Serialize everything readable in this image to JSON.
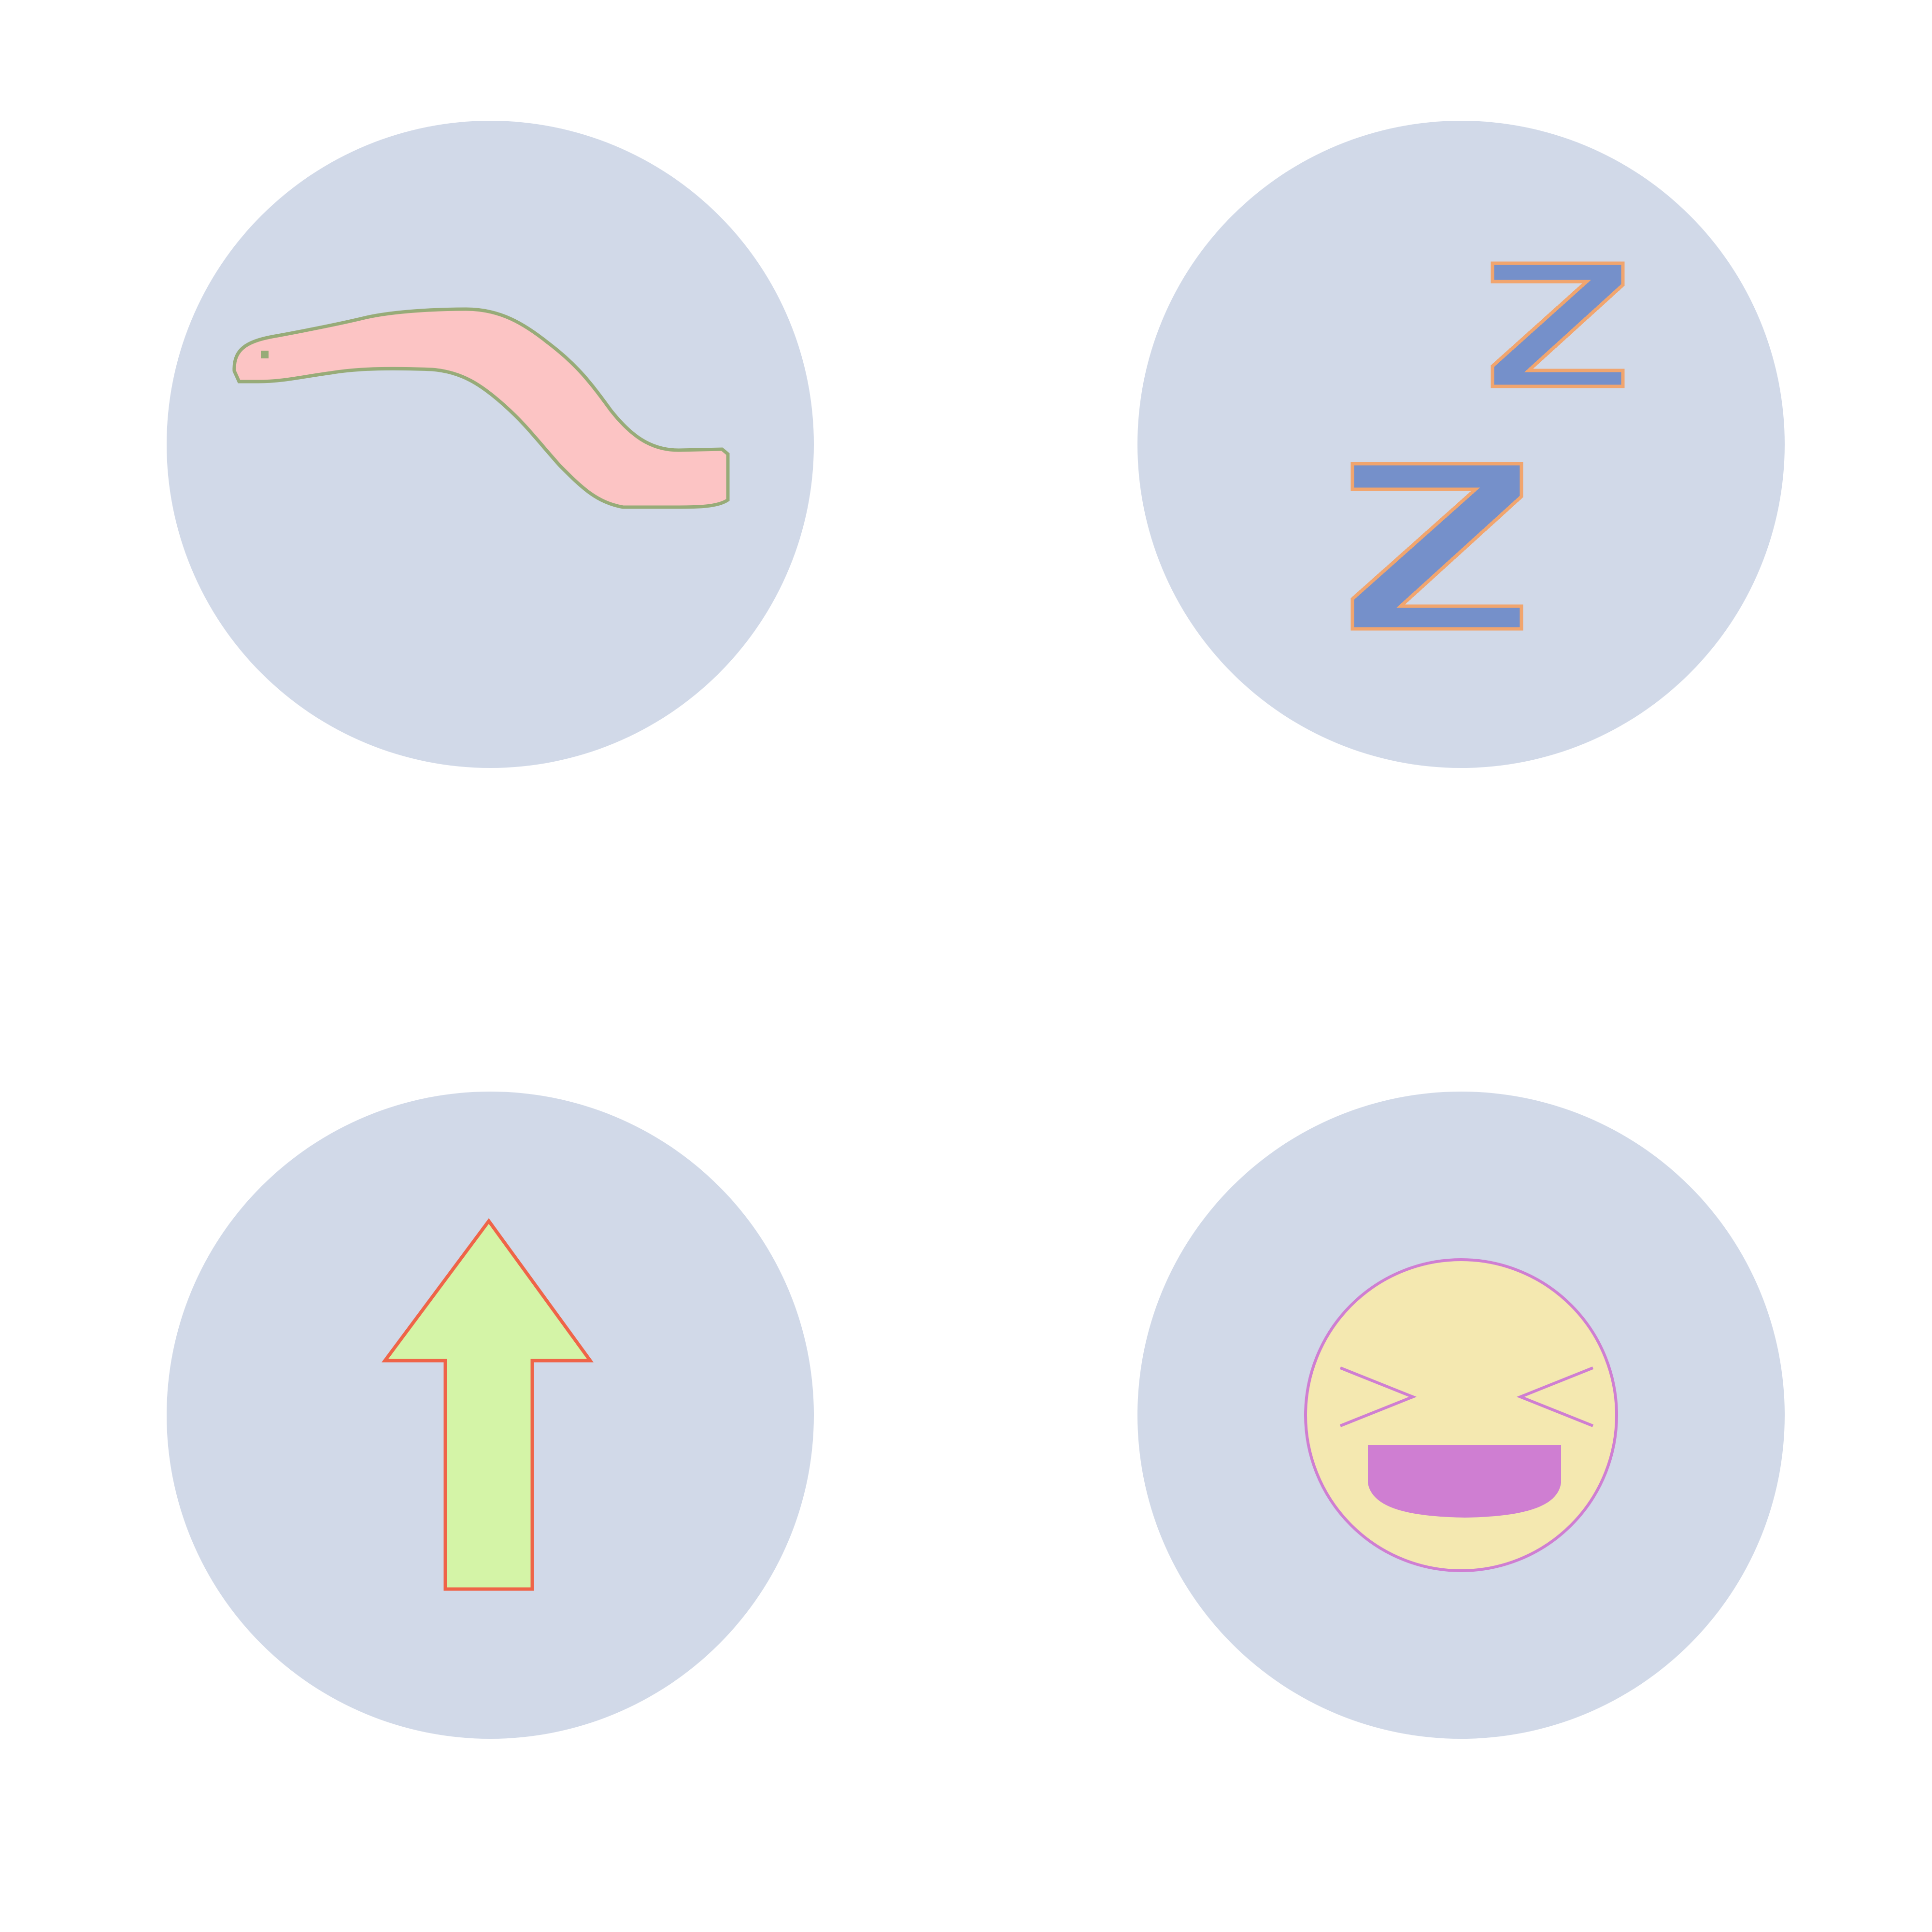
{
  "colors": {
    "page_background": "#ffffff",
    "tile_background": "#d1d9e8"
  },
  "icons": [
    {
      "name": "worm-icon",
      "fill": "#fcc4c4",
      "stroke": "#97ab78"
    },
    {
      "name": "sleep-zzz-icon",
      "fill": "#7590ca",
      "stroke": "#f1a56e"
    },
    {
      "name": "up-arrow-icon",
      "fill": "#d4f4a7",
      "stroke": "#ef6448"
    },
    {
      "name": "laughing-face-icon",
      "fill": "#f4e8b0",
      "stroke": "#cf7ed2",
      "mouth_fill": "#cf7ed2"
    }
  ]
}
